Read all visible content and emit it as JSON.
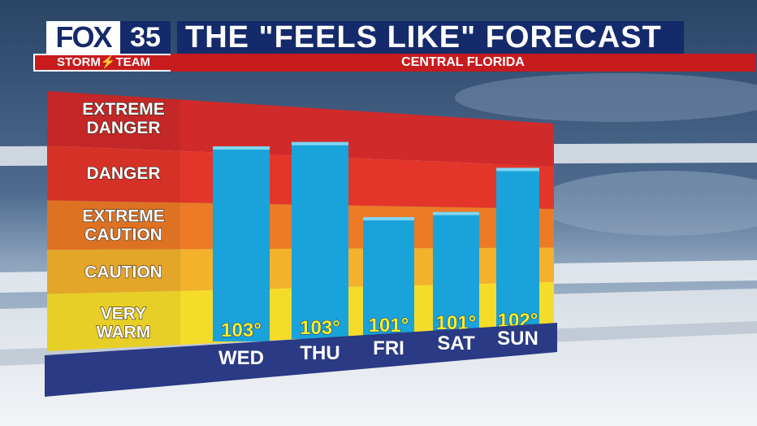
{
  "header": {
    "logo_fox": "FOX",
    "logo_num": "35",
    "logo_team": "STORM⚡TEAM",
    "title": "THE \"FEELS LIKE\" FORECAST",
    "subtitle": "CENTRAL FLORIDA"
  },
  "chart_data": {
    "type": "bar",
    "title": "THE \"FEELS LIKE\" FORECAST",
    "subtitle": "CENTRAL FLORIDA",
    "categories": [
      "WED",
      "THU",
      "FRI",
      "SAT",
      "SUN"
    ],
    "values": [
      103,
      103,
      101,
      101,
      102
    ],
    "value_labels": [
      "103°",
      "103°",
      "101°",
      "101°",
      "102°"
    ],
    "zones": [
      {
        "label": "EXTREME\nDANGER",
        "color": "#d12a2a"
      },
      {
        "label": "DANGER",
        "color": "#e4352a"
      },
      {
        "label": "EXTREME\nCAUTION",
        "color": "#ec7a26"
      },
      {
        "label": "CAUTION",
        "color": "#f3b12c"
      },
      {
        "label": "VERY\nWARM",
        "color": "#f6dc2a"
      }
    ],
    "bar_color": "#1aa3da",
    "base_color": "#2a3a84"
  }
}
